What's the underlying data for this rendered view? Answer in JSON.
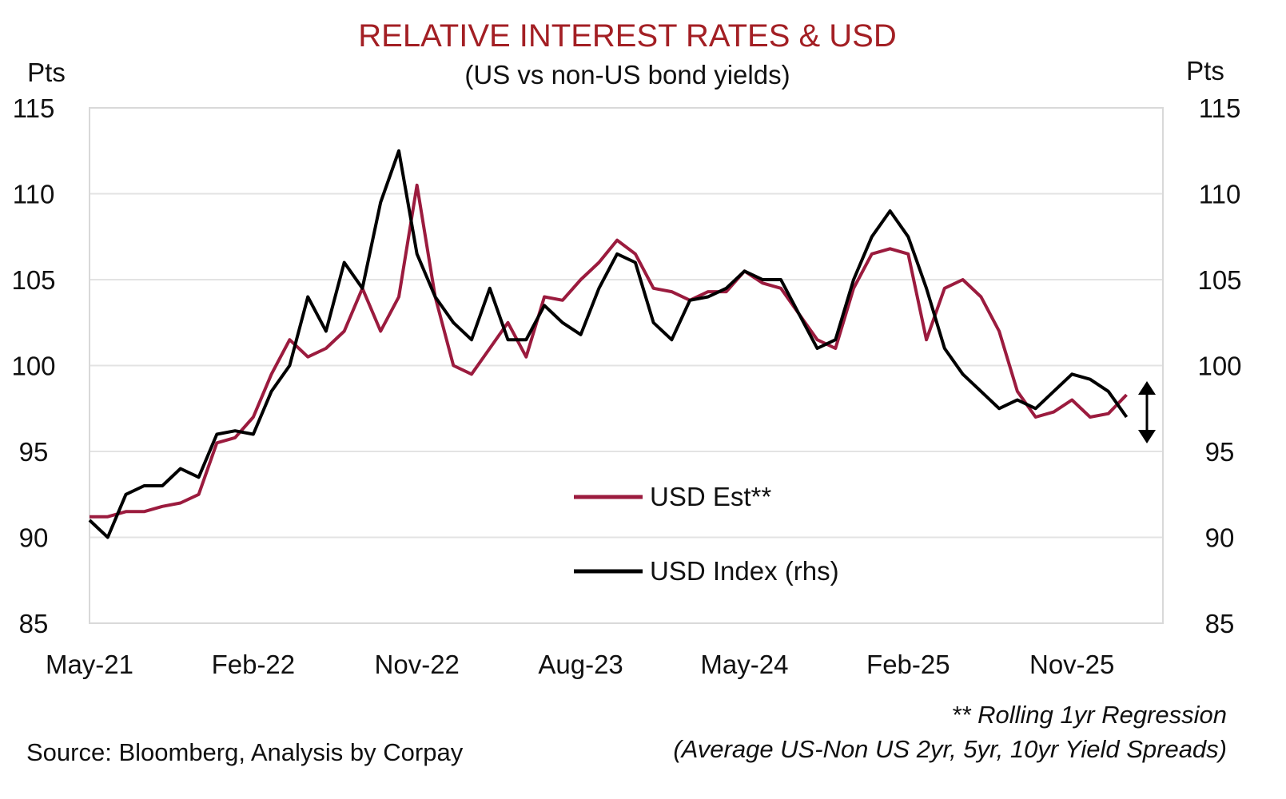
{
  "chart_data": {
    "type": "line",
    "title": "RELATIVE INTEREST RATES & USD",
    "subtitle": "(US vs non-US bond yields)",
    "ylabel_left": "Pts",
    "ylabel_right": "Pts",
    "ylim_left": [
      85,
      115
    ],
    "ylim_right": [
      85,
      115
    ],
    "yticks": [
      "85",
      "90",
      "95",
      "100",
      "105",
      "110",
      "115"
    ],
    "xticks": [
      {
        "label": "May-21",
        "month": "2021-05"
      },
      {
        "label": "Feb-22",
        "month": "2022-02"
      },
      {
        "label": "Nov-22",
        "month": "2022-11"
      },
      {
        "label": "Aug-23",
        "month": "2023-08"
      },
      {
        "label": "May-24",
        "month": "2024-05"
      },
      {
        "label": "Feb-25",
        "month": "2025-02"
      },
      {
        "label": "Nov-25",
        "month": "2025-11"
      }
    ],
    "xlim": [
      "2021-05",
      "2026-04"
    ],
    "grid": "horizontal",
    "legend_placement": "bottom-center",
    "x": [
      "2021-05",
      "2021-06",
      "2021-07",
      "2021-08",
      "2021-09",
      "2021-10",
      "2021-11",
      "2021-12",
      "2022-01",
      "2022-02",
      "2022-03",
      "2022-04",
      "2022-05",
      "2022-06",
      "2022-07",
      "2022-08",
      "2022-09",
      "2022-10",
      "2022-11",
      "2022-12",
      "2023-01",
      "2023-02",
      "2023-03",
      "2023-04",
      "2023-05",
      "2023-06",
      "2023-07",
      "2023-08",
      "2023-09",
      "2023-10",
      "2023-11",
      "2023-12",
      "2024-01",
      "2024-02",
      "2024-03",
      "2024-04",
      "2024-05",
      "2024-06",
      "2024-07",
      "2024-08",
      "2024-09",
      "2024-10",
      "2024-11",
      "2024-12",
      "2025-01",
      "2025-02",
      "2025-03",
      "2025-04",
      "2025-05",
      "2025-06",
      "2025-07",
      "2025-08",
      "2025-09",
      "2025-10",
      "2025-11",
      "2025-12",
      "2026-01",
      "2026-02"
    ],
    "series": [
      {
        "name": "USD Est**",
        "axis": "left",
        "color": "#9b1b3e",
        "values": [
          91.2,
          91.2,
          91.5,
          91.5,
          91.8,
          92,
          92.5,
          95.5,
          95.8,
          97,
          99.5,
          101.5,
          100.5,
          101,
          102,
          104.5,
          102,
          104,
          110.5,
          104,
          100,
          99.5,
          101,
          102.5,
          100.5,
          104,
          103.8,
          105,
          106,
          107.3,
          106.5,
          104.5,
          104.3,
          103.8,
          104.3,
          104.3,
          105.5,
          104.8,
          104.5,
          103,
          101.5,
          101,
          104.5,
          106.5,
          106.8,
          106.5,
          101.5,
          104.5,
          105,
          104,
          102,
          98.5,
          97,
          97.3,
          98,
          97,
          97.2,
          98.3
        ]
      },
      {
        "name": "USD Index (rhs)",
        "axis": "right",
        "color": "#000000",
        "values": [
          91,
          90,
          92.5,
          93,
          93,
          94,
          93.5,
          96,
          96.2,
          96,
          98.5,
          100,
          104,
          102,
          106,
          104.5,
          109.5,
          112.5,
          106.5,
          104,
          102.5,
          101.5,
          104.5,
          101.5,
          101.5,
          103.5,
          102.5,
          101.8,
          104.5,
          106.5,
          106,
          102.5,
          101.5,
          103.8,
          104,
          104.5,
          105.5,
          105,
          105,
          103,
          101,
          101.5,
          105,
          107.5,
          109,
          107.5,
          104.5,
          101,
          99.5,
          98.5,
          97.5,
          98,
          97.5,
          98.5,
          99.5,
          99.2,
          98.5,
          97
        ]
      }
    ],
    "footnote_1": "** Rolling 1yr Regression",
    "footnote_2": "(Average US-Non US 2yr, 5yr, 10yr Yield Spreads)",
    "source": "Source: Bloomberg, Analysis by Corpay"
  },
  "colors": {
    "title": "#a31f24",
    "grid": "#e3e3e3",
    "axis": "#d9d9d9"
  }
}
